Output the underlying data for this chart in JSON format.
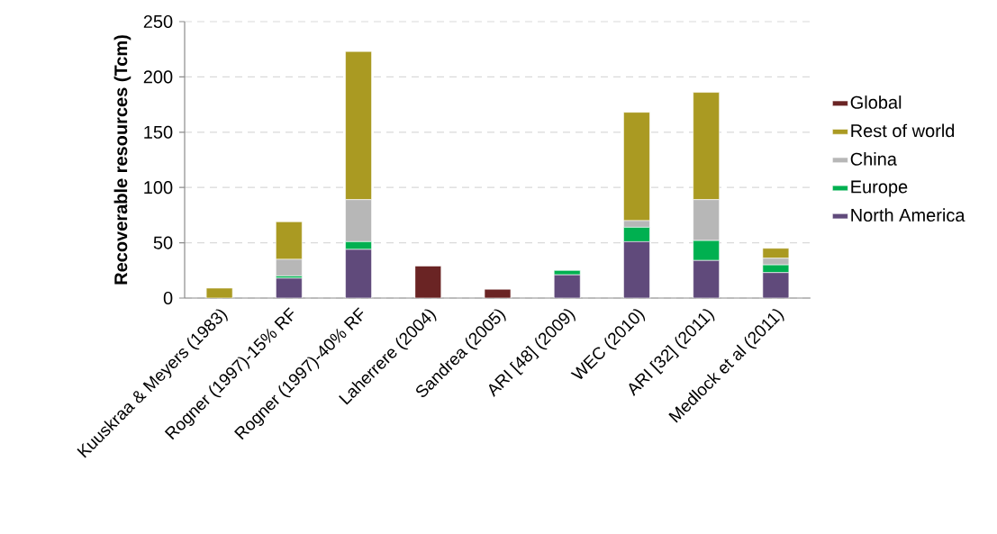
{
  "chart_data": {
    "type": "bar",
    "stacked": true,
    "ylabel": "Recoverable resources (Tcm)",
    "categories": [
      "Kuuskraa & Meyers (1983)",
      "Rogner (1997)-15% RF",
      "Rogner (1997)-40% RF",
      "Laherrere (2004)",
      "Sandrea (2005)",
      "ARI [48] (2009)",
      "WEC (2010)",
      "ARI [32] (2011)",
      "Medlock et al (2011)"
    ],
    "series": [
      {
        "name": "North America",
        "color": "#604a7b",
        "values": [
          null,
          18,
          44,
          null,
          null,
          21,
          51,
          34,
          23
        ]
      },
      {
        "name": "Europe",
        "color": "#00b050",
        "values": [
          null,
          2,
          7,
          null,
          null,
          4,
          13,
          18,
          7
        ]
      },
      {
        "name": "China",
        "color": "#b7b7b7",
        "values": [
          null,
          15,
          38,
          null,
          null,
          null,
          6,
          37,
          6
        ]
      },
      {
        "name": "Rest of world",
        "color": "#aa9a22",
        "values": [
          9,
          34,
          134,
          null,
          null,
          null,
          98,
          97,
          9
        ]
      },
      {
        "name": "Global",
        "color": "#6a2424",
        "values": [
          null,
          null,
          null,
          29,
          8,
          null,
          null,
          null,
          null
        ]
      }
    ],
    "ylim": [
      0,
      250
    ],
    "yticks": [
      0,
      50,
      100,
      150,
      200,
      250
    ],
    "grid": "y",
    "legend": "right"
  }
}
